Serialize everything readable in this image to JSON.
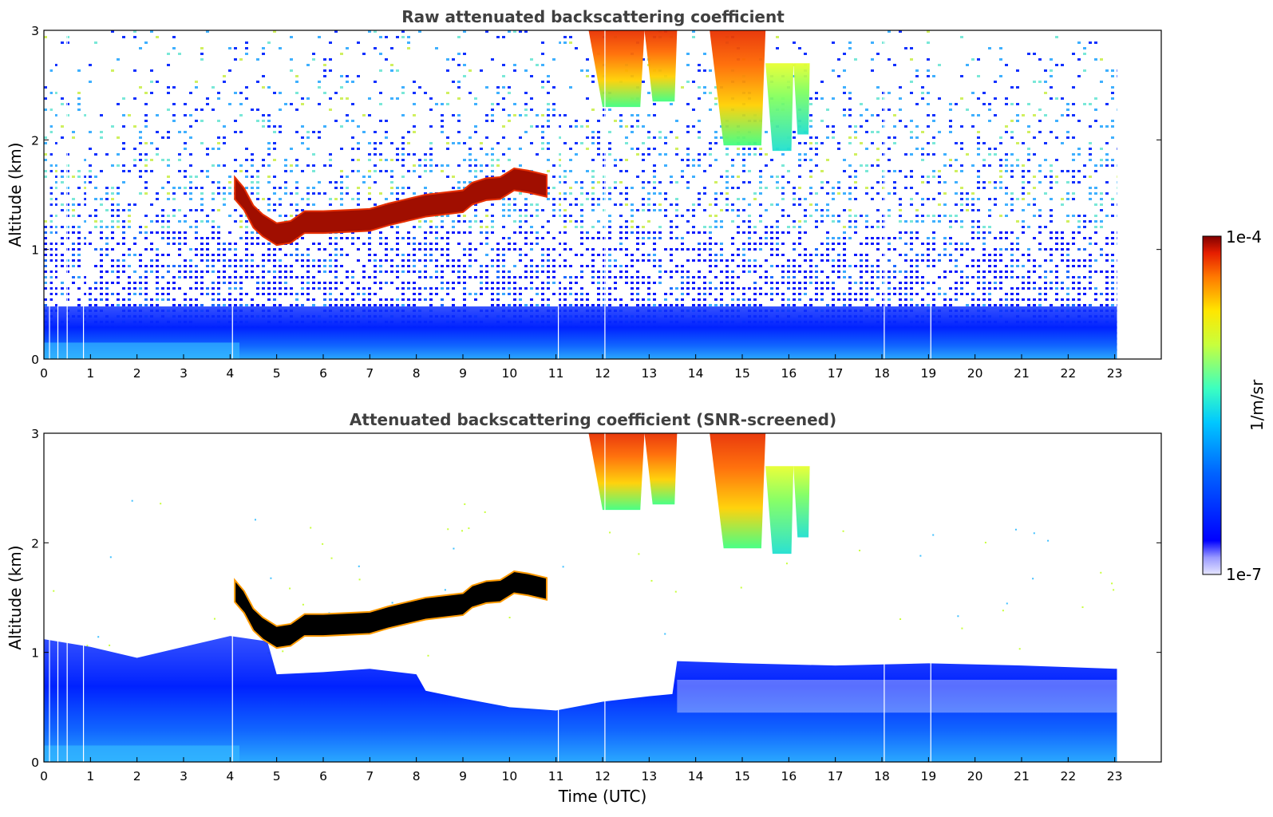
{
  "chart_data": [
    {
      "type": "heatmap",
      "title": "Raw attenuated backscattering coefficient",
      "xlabel": "",
      "ylabel": "Altitude (km)",
      "xlim": [
        0,
        24
      ],
      "ylim": [
        0,
        3
      ],
      "x_ticks": [
        "0",
        "1",
        "2",
        "3",
        "4",
        "5",
        "6",
        "7",
        "8",
        "9",
        "10",
        "11",
        "12",
        "13",
        "14",
        "15",
        "16",
        "17",
        "18",
        "19",
        "20",
        "21",
        "22",
        "23"
      ],
      "y_ticks": [
        "0",
        "1",
        "2",
        "3"
      ],
      "data_extent_hours": [
        0,
        23.05
      ],
      "features": [
        {
          "kind": "cloud_layer",
          "level": "high",
          "points": [
            [
              4.1,
              1.56
            ],
            [
              4.3,
              1.46
            ],
            [
              4.5,
              1.3
            ],
            [
              4.7,
              1.22
            ],
            [
              5.0,
              1.14
            ],
            [
              5.3,
              1.16
            ],
            [
              5.6,
              1.25
            ],
            [
              6.0,
              1.25
            ],
            [
              6.5,
              1.26
            ],
            [
              7.0,
              1.27
            ],
            [
              7.4,
              1.32
            ],
            [
              7.8,
              1.36
            ],
            [
              8.2,
              1.4
            ],
            [
              8.6,
              1.42
            ],
            [
              9.0,
              1.44
            ],
            [
              9.2,
              1.51
            ],
            [
              9.5,
              1.55
            ],
            [
              9.8,
              1.56
            ],
            [
              10.1,
              1.64
            ],
            [
              10.4,
              1.62
            ],
            [
              10.8,
              1.58
            ]
          ]
        },
        {
          "kind": "precipitation_streak",
          "x": [
            11.7,
            12.9
          ],
          "y": [
            2.3,
            3.0
          ],
          "level": "mid-high"
        },
        {
          "kind": "precipitation_streak",
          "x": [
            12.9,
            13.6
          ],
          "y": [
            2.35,
            3.0
          ],
          "level": "high"
        },
        {
          "kind": "precipitation_streak",
          "x": [
            14.3,
            15.5
          ],
          "y": [
            1.95,
            3.0
          ],
          "level": "high"
        },
        {
          "kind": "precipitation_streak",
          "x": [
            15.5,
            16.1
          ],
          "y": [
            1.9,
            2.7
          ],
          "level": "mid"
        },
        {
          "kind": "precipitation_streak",
          "x": [
            16.1,
            16.45
          ],
          "y": [
            2.05,
            2.7
          ],
          "level": "mid"
        },
        {
          "kind": "boundary_layer",
          "top_km": 0.45,
          "level": "low"
        }
      ]
    },
    {
      "type": "heatmap",
      "title": "Attenuated backscattering coefficient (SNR-screened)",
      "xlabel": "Time (UTC)",
      "ylabel": "Altitude (km)",
      "xlim": [
        0,
        24
      ],
      "ylim": [
        0,
        3
      ],
      "x_ticks": [
        "0",
        "1",
        "2",
        "3",
        "4",
        "5",
        "6",
        "7",
        "8",
        "9",
        "10",
        "11",
        "12",
        "13",
        "14",
        "15",
        "16",
        "17",
        "18",
        "19",
        "20",
        "21",
        "22",
        "23"
      ],
      "y_ticks": [
        "0",
        "1",
        "2",
        "3"
      ],
      "data_extent_hours": [
        0,
        23.05
      ],
      "screened_boundary_layer_top": [
        [
          0,
          1.12
        ],
        [
          1,
          1.05
        ],
        [
          2,
          0.95
        ],
        [
          3,
          1.05
        ],
        [
          4,
          1.15
        ],
        [
          4.8,
          1.1
        ],
        [
          5.0,
          0.8
        ],
        [
          6.0,
          0.82
        ],
        [
          7.0,
          0.85
        ],
        [
          8.0,
          0.8
        ],
        [
          8.2,
          0.65
        ],
        [
          9.0,
          0.58
        ],
        [
          10.0,
          0.5
        ],
        [
          11.0,
          0.47
        ],
        [
          12.0,
          0.55
        ],
        [
          13.0,
          0.6
        ],
        [
          13.5,
          0.62
        ],
        [
          13.6,
          0.92
        ],
        [
          15.0,
          0.9
        ],
        [
          17.0,
          0.88
        ],
        [
          19.0,
          0.9
        ],
        [
          21.0,
          0.88
        ],
        [
          23.05,
          0.85
        ]
      ]
    }
  ],
  "colorbar": {
    "label": "1/m/sr",
    "max_label": "1e-4",
    "min_label": "1e-7",
    "colormap": "jet",
    "cloud_saturation_color": "#000000"
  }
}
